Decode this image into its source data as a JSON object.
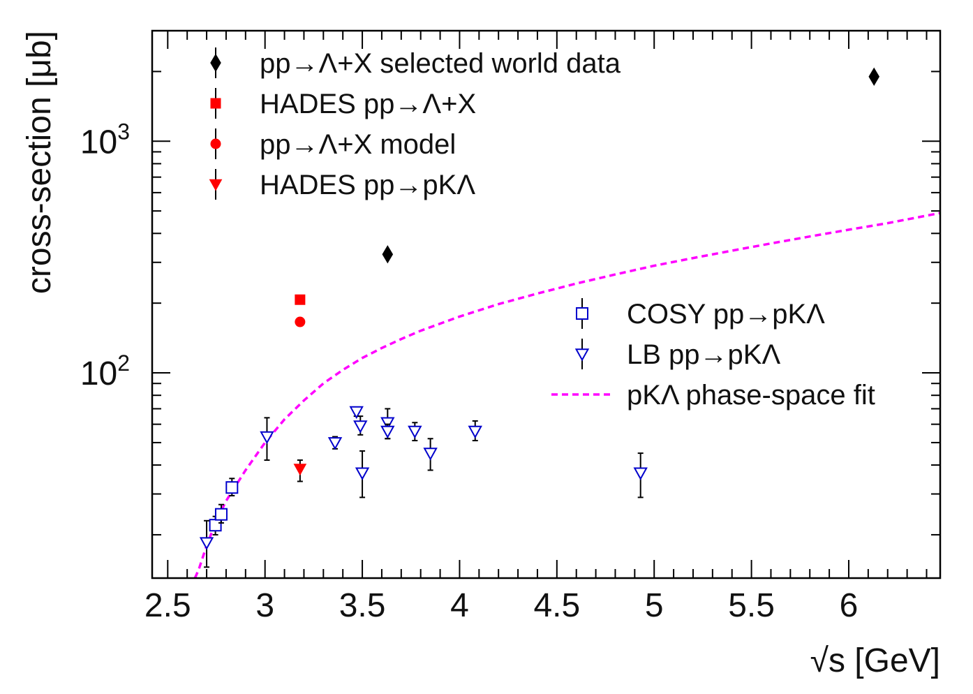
{
  "chart_data": {
    "type": "scatter",
    "xlabel": "√s [GeV]",
    "ylabel": "cross-section [μb]",
    "xlim": [
      2.42,
      6.47
    ],
    "ylim": [
      13,
      3000
    ],
    "yscale": "log",
    "grid": false,
    "x_ticks": [
      {
        "value": 2.5,
        "label": "2.5"
      },
      {
        "value": 3,
        "label": "3"
      },
      {
        "value": 3.5,
        "label": "3.5"
      },
      {
        "value": 4,
        "label": "4"
      },
      {
        "value": 4.5,
        "label": "4.5"
      },
      {
        "value": 5,
        "label": "5"
      },
      {
        "value": 5.5,
        "label": "5.5"
      },
      {
        "value": 6,
        "label": "6"
      }
    ],
    "y_ticks": [
      {
        "value": 100,
        "base": "10",
        "exp": "2"
      },
      {
        "value": 1000,
        "base": "10",
        "exp": "3"
      }
    ],
    "legends": [
      {
        "placement": "top-left",
        "entries": [
          {
            "series": 0,
            "label": "pp→Λ+X selected world data"
          },
          {
            "series": 1,
            "label": "HADES pp→Λ+X"
          },
          {
            "series": 2,
            "label": "pp→Λ+X model"
          },
          {
            "series": 3,
            "label": "HADES pp→pKΛ"
          }
        ]
      },
      {
        "placement": "middle-right",
        "entries": [
          {
            "series": 4,
            "label": "COSY pp→pKΛ"
          },
          {
            "series": 5,
            "label": "LB pp→pKΛ"
          },
          {
            "series": 6,
            "label": "pKΛ phase-space fit"
          }
        ]
      }
    ],
    "series": [
      {
        "name": "pp→Λ+X selected world data",
        "marker": "diamond",
        "color": "#000000",
        "filled": true,
        "points": [
          {
            "x": 3.63,
            "y": 325,
            "lo": 325,
            "hi": 325
          },
          {
            "x": 6.13,
            "y": 1900,
            "lo": 1900,
            "hi": 1900
          }
        ]
      },
      {
        "name": "HADES pp→Λ+X",
        "marker": "square",
        "color": "#ff0000",
        "filled": true,
        "points": [
          {
            "x": 3.18,
            "y": 207,
            "lo": 207,
            "hi": 207
          }
        ]
      },
      {
        "name": "pp→Λ+X model",
        "marker": "circle",
        "color": "#ff0000",
        "filled": true,
        "points": [
          {
            "x": 3.18,
            "y": 166,
            "lo": 166,
            "hi": 166
          }
        ]
      },
      {
        "name": "HADES pp→pKΛ",
        "marker": "triangle-down",
        "color": "#ff0000",
        "filled": true,
        "points": [
          {
            "x": 3.18,
            "y": 38.5,
            "lo": 34,
            "hi": 42
          }
        ]
      },
      {
        "name": "COSY pp→pKΛ",
        "marker": "square",
        "color": "#0000cc",
        "filled": false,
        "points": [
          {
            "x": 2.745,
            "y": 22,
            "lo": 20,
            "hi": 24
          },
          {
            "x": 2.775,
            "y": 24.5,
            "lo": 22.5,
            "hi": 27
          },
          {
            "x": 2.83,
            "y": 32,
            "lo": 29.5,
            "hi": 35
          }
        ]
      },
      {
        "name": "LB pp→pKΛ",
        "marker": "triangle-down",
        "color": "#0000cc",
        "filled": false,
        "points": [
          {
            "x": 2.7,
            "y": 18.5,
            "lo": 14.5,
            "hi": 23
          },
          {
            "x": 3.01,
            "y": 53,
            "lo": 42,
            "hi": 64
          },
          {
            "x": 3.36,
            "y": 50,
            "lo": 47,
            "hi": 53
          },
          {
            "x": 3.47,
            "y": 68,
            "lo": 65,
            "hi": 71
          },
          {
            "x": 3.49,
            "y": 59,
            "lo": 54,
            "hi": 65
          },
          {
            "x": 3.5,
            "y": 37,
            "lo": 29,
            "hi": 46
          },
          {
            "x": 3.63,
            "y": 61,
            "lo": 52,
            "hi": 70
          },
          {
            "x": 3.63,
            "y": 56,
            "lo": 52,
            "hi": 60
          },
          {
            "x": 3.77,
            "y": 56,
            "lo": 51,
            "hi": 61
          },
          {
            "x": 3.85,
            "y": 45,
            "lo": 38,
            "hi": 52
          },
          {
            "x": 4.08,
            "y": 56,
            "lo": 51,
            "hi": 62
          },
          {
            "x": 4.93,
            "y": 37,
            "lo": 29,
            "hi": 45
          }
        ]
      },
      {
        "name": "pKΛ phase-space fit",
        "marker": "line",
        "color": "#ff00ff",
        "dashed": true,
        "curve": [
          {
            "x": 2.64,
            "y": 13
          },
          {
            "x": 2.66,
            "y": 14.2
          },
          {
            "x": 2.7,
            "y": 18
          },
          {
            "x": 2.75,
            "y": 23
          },
          {
            "x": 2.8,
            "y": 28
          },
          {
            "x": 2.9,
            "y": 38
          },
          {
            "x": 3.0,
            "y": 50
          },
          {
            "x": 3.1,
            "y": 63
          },
          {
            "x": 3.2,
            "y": 76
          },
          {
            "x": 3.3,
            "y": 90
          },
          {
            "x": 3.4,
            "y": 103
          },
          {
            "x": 3.5,
            "y": 116
          },
          {
            "x": 3.6,
            "y": 128
          },
          {
            "x": 3.7,
            "y": 140
          },
          {
            "x": 3.8,
            "y": 152
          },
          {
            "x": 4.0,
            "y": 175
          },
          {
            "x": 4.2,
            "y": 198
          },
          {
            "x": 4.4,
            "y": 220
          },
          {
            "x": 4.6,
            "y": 243
          },
          {
            "x": 4.8,
            "y": 266
          },
          {
            "x": 5.0,
            "y": 290
          },
          {
            "x": 5.2,
            "y": 313
          },
          {
            "x": 5.4,
            "y": 337
          },
          {
            "x": 5.6,
            "y": 362
          },
          {
            "x": 5.8,
            "y": 388
          },
          {
            "x": 6.0,
            "y": 415
          },
          {
            "x": 6.2,
            "y": 443
          },
          {
            "x": 6.47,
            "y": 490
          }
        ]
      }
    ]
  }
}
